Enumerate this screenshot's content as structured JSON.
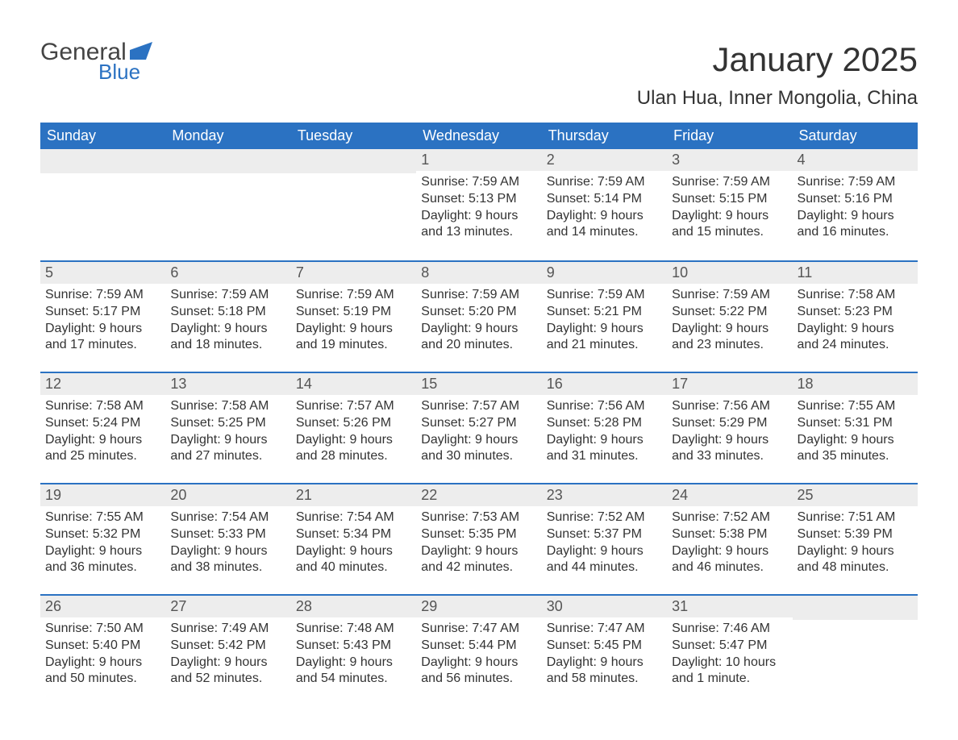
{
  "logo": {
    "text1": "General",
    "text2": "Blue",
    "color_general": "#444444",
    "color_blue": "#2b72c2"
  },
  "title": "January 2025",
  "subtitle": "Ulan Hua, Inner Mongolia, China",
  "colors": {
    "header_bg": "#2b72c2",
    "header_text": "#ffffff",
    "daynum_bg": "#ededed",
    "row_border": "#2b72c2",
    "body_text": "#333333",
    "page_bg": "#ffffff"
  },
  "weekdays": [
    "Sunday",
    "Monday",
    "Tuesday",
    "Wednesday",
    "Thursday",
    "Friday",
    "Saturday"
  ],
  "weeks": [
    [
      null,
      null,
      null,
      {
        "day": "1",
        "sunrise": "Sunrise: 7:59 AM",
        "sunset": "Sunset: 5:13 PM",
        "daylight1": "Daylight: 9 hours",
        "daylight2": "and 13 minutes."
      },
      {
        "day": "2",
        "sunrise": "Sunrise: 7:59 AM",
        "sunset": "Sunset: 5:14 PM",
        "daylight1": "Daylight: 9 hours",
        "daylight2": "and 14 minutes."
      },
      {
        "day": "3",
        "sunrise": "Sunrise: 7:59 AM",
        "sunset": "Sunset: 5:15 PM",
        "daylight1": "Daylight: 9 hours",
        "daylight2": "and 15 minutes."
      },
      {
        "day": "4",
        "sunrise": "Sunrise: 7:59 AM",
        "sunset": "Sunset: 5:16 PM",
        "daylight1": "Daylight: 9 hours",
        "daylight2": "and 16 minutes."
      }
    ],
    [
      {
        "day": "5",
        "sunrise": "Sunrise: 7:59 AM",
        "sunset": "Sunset: 5:17 PM",
        "daylight1": "Daylight: 9 hours",
        "daylight2": "and 17 minutes."
      },
      {
        "day": "6",
        "sunrise": "Sunrise: 7:59 AM",
        "sunset": "Sunset: 5:18 PM",
        "daylight1": "Daylight: 9 hours",
        "daylight2": "and 18 minutes."
      },
      {
        "day": "7",
        "sunrise": "Sunrise: 7:59 AM",
        "sunset": "Sunset: 5:19 PM",
        "daylight1": "Daylight: 9 hours",
        "daylight2": "and 19 minutes."
      },
      {
        "day": "8",
        "sunrise": "Sunrise: 7:59 AM",
        "sunset": "Sunset: 5:20 PM",
        "daylight1": "Daylight: 9 hours",
        "daylight2": "and 20 minutes."
      },
      {
        "day": "9",
        "sunrise": "Sunrise: 7:59 AM",
        "sunset": "Sunset: 5:21 PM",
        "daylight1": "Daylight: 9 hours",
        "daylight2": "and 21 minutes."
      },
      {
        "day": "10",
        "sunrise": "Sunrise: 7:59 AM",
        "sunset": "Sunset: 5:22 PM",
        "daylight1": "Daylight: 9 hours",
        "daylight2": "and 23 minutes."
      },
      {
        "day": "11",
        "sunrise": "Sunrise: 7:58 AM",
        "sunset": "Sunset: 5:23 PM",
        "daylight1": "Daylight: 9 hours",
        "daylight2": "and 24 minutes."
      }
    ],
    [
      {
        "day": "12",
        "sunrise": "Sunrise: 7:58 AM",
        "sunset": "Sunset: 5:24 PM",
        "daylight1": "Daylight: 9 hours",
        "daylight2": "and 25 minutes."
      },
      {
        "day": "13",
        "sunrise": "Sunrise: 7:58 AM",
        "sunset": "Sunset: 5:25 PM",
        "daylight1": "Daylight: 9 hours",
        "daylight2": "and 27 minutes."
      },
      {
        "day": "14",
        "sunrise": "Sunrise: 7:57 AM",
        "sunset": "Sunset: 5:26 PM",
        "daylight1": "Daylight: 9 hours",
        "daylight2": "and 28 minutes."
      },
      {
        "day": "15",
        "sunrise": "Sunrise: 7:57 AM",
        "sunset": "Sunset: 5:27 PM",
        "daylight1": "Daylight: 9 hours",
        "daylight2": "and 30 minutes."
      },
      {
        "day": "16",
        "sunrise": "Sunrise: 7:56 AM",
        "sunset": "Sunset: 5:28 PM",
        "daylight1": "Daylight: 9 hours",
        "daylight2": "and 31 minutes."
      },
      {
        "day": "17",
        "sunrise": "Sunrise: 7:56 AM",
        "sunset": "Sunset: 5:29 PM",
        "daylight1": "Daylight: 9 hours",
        "daylight2": "and 33 minutes."
      },
      {
        "day": "18",
        "sunrise": "Sunrise: 7:55 AM",
        "sunset": "Sunset: 5:31 PM",
        "daylight1": "Daylight: 9 hours",
        "daylight2": "and 35 minutes."
      }
    ],
    [
      {
        "day": "19",
        "sunrise": "Sunrise: 7:55 AM",
        "sunset": "Sunset: 5:32 PM",
        "daylight1": "Daylight: 9 hours",
        "daylight2": "and 36 minutes."
      },
      {
        "day": "20",
        "sunrise": "Sunrise: 7:54 AM",
        "sunset": "Sunset: 5:33 PM",
        "daylight1": "Daylight: 9 hours",
        "daylight2": "and 38 minutes."
      },
      {
        "day": "21",
        "sunrise": "Sunrise: 7:54 AM",
        "sunset": "Sunset: 5:34 PM",
        "daylight1": "Daylight: 9 hours",
        "daylight2": "and 40 minutes."
      },
      {
        "day": "22",
        "sunrise": "Sunrise: 7:53 AM",
        "sunset": "Sunset: 5:35 PM",
        "daylight1": "Daylight: 9 hours",
        "daylight2": "and 42 minutes."
      },
      {
        "day": "23",
        "sunrise": "Sunrise: 7:52 AM",
        "sunset": "Sunset: 5:37 PM",
        "daylight1": "Daylight: 9 hours",
        "daylight2": "and 44 minutes."
      },
      {
        "day": "24",
        "sunrise": "Sunrise: 7:52 AM",
        "sunset": "Sunset: 5:38 PM",
        "daylight1": "Daylight: 9 hours",
        "daylight2": "and 46 minutes."
      },
      {
        "day": "25",
        "sunrise": "Sunrise: 7:51 AM",
        "sunset": "Sunset: 5:39 PM",
        "daylight1": "Daylight: 9 hours",
        "daylight2": "and 48 minutes."
      }
    ],
    [
      {
        "day": "26",
        "sunrise": "Sunrise: 7:50 AM",
        "sunset": "Sunset: 5:40 PM",
        "daylight1": "Daylight: 9 hours",
        "daylight2": "and 50 minutes."
      },
      {
        "day": "27",
        "sunrise": "Sunrise: 7:49 AM",
        "sunset": "Sunset: 5:42 PM",
        "daylight1": "Daylight: 9 hours",
        "daylight2": "and 52 minutes."
      },
      {
        "day": "28",
        "sunrise": "Sunrise: 7:48 AM",
        "sunset": "Sunset: 5:43 PM",
        "daylight1": "Daylight: 9 hours",
        "daylight2": "and 54 minutes."
      },
      {
        "day": "29",
        "sunrise": "Sunrise: 7:47 AM",
        "sunset": "Sunset: 5:44 PM",
        "daylight1": "Daylight: 9 hours",
        "daylight2": "and 56 minutes."
      },
      {
        "day": "30",
        "sunrise": "Sunrise: 7:47 AM",
        "sunset": "Sunset: 5:45 PM",
        "daylight1": "Daylight: 9 hours",
        "daylight2": "and 58 minutes."
      },
      {
        "day": "31",
        "sunrise": "Sunrise: 7:46 AM",
        "sunset": "Sunset: 5:47 PM",
        "daylight1": "Daylight: 10 hours",
        "daylight2": "and 1 minute."
      },
      null
    ]
  ]
}
